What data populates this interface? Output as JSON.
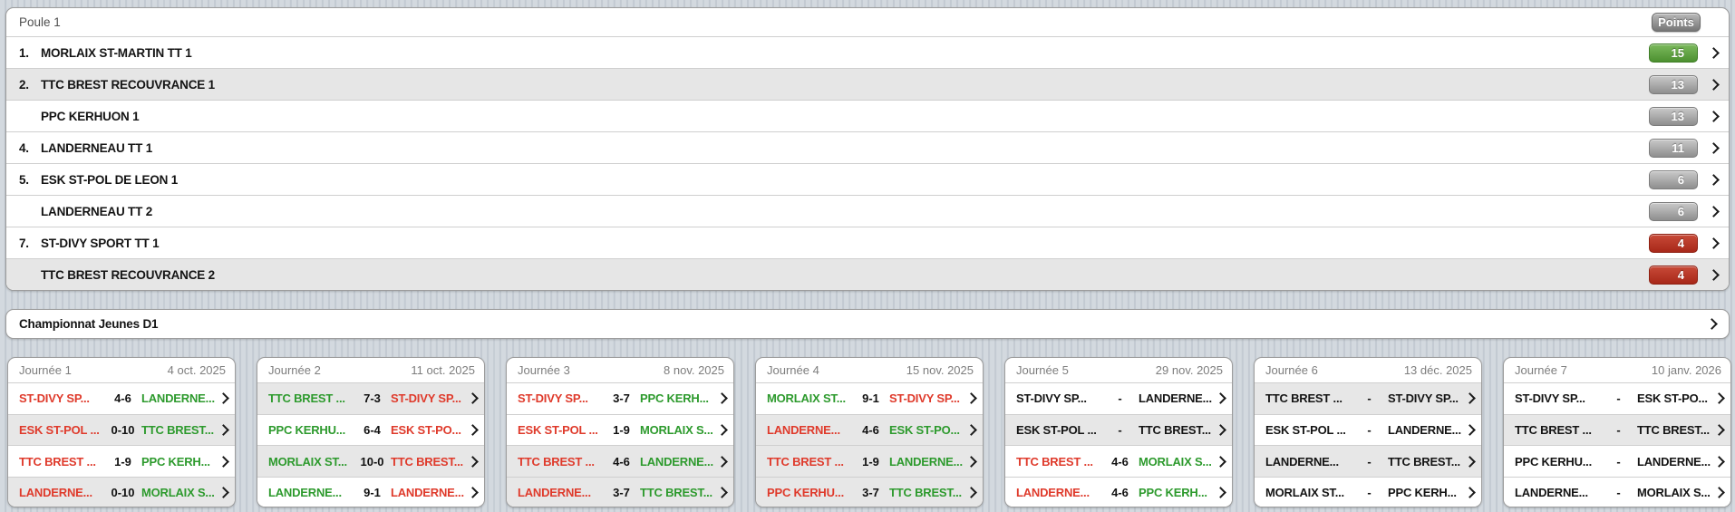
{
  "colors": {
    "win_text": "#2d9a2d",
    "loss_text": "#df3a2b",
    "badge_green_border": "#3f7d27",
    "badge_gray_border": "#7c7c7c",
    "badge_red_border": "#8d2012"
  },
  "pool": {
    "title": "Poule 1",
    "points_label": "Points",
    "teams": [
      {
        "rank": "1.",
        "name": "MORLAIX ST-MARTIN TT 1",
        "points": "15",
        "badge": "green",
        "highlighted": false
      },
      {
        "rank": "2.",
        "name": "TTC BREST RECOUVRANCE 1",
        "points": "13",
        "badge": "gray",
        "highlighted": true
      },
      {
        "rank": "",
        "name": "PPC KERHUON 1",
        "points": "13",
        "badge": "gray",
        "highlighted": false
      },
      {
        "rank": "4.",
        "name": "LANDERNEAU TT 1",
        "points": "11",
        "badge": "gray",
        "highlighted": false
      },
      {
        "rank": "5.",
        "name": "ESK ST-POL DE LEON 1",
        "points": "6",
        "badge": "gray",
        "highlighted": false
      },
      {
        "rank": "",
        "name": "LANDERNEAU TT 2",
        "points": "6",
        "badge": "gray",
        "highlighted": false
      },
      {
        "rank": "7.",
        "name": "ST-DIVY SPORT TT 1",
        "points": "4",
        "badge": "red",
        "highlighted": false
      },
      {
        "rank": "",
        "name": "TTC BREST RECOUVRANCE 2",
        "points": "4",
        "badge": "red",
        "highlighted": true
      }
    ]
  },
  "section_link": {
    "title": "Championnat Jeunes D1"
  },
  "rounds": [
    {
      "label": "Journée 1",
      "date": "4 oct. 2025",
      "matches": [
        {
          "home": "ST-DIVY SP...",
          "score": "4-6",
          "away": "LANDERNE...",
          "home_res": "loss",
          "away_res": "win",
          "highlighted": false
        },
        {
          "home": "ESK ST-POL ...",
          "score": "0-10",
          "away": "TTC BREST...",
          "home_res": "loss",
          "away_res": "win",
          "highlighted": true
        },
        {
          "home": "TTC BREST ...",
          "score": "1-9",
          "away": "PPC KERH...",
          "home_res": "loss",
          "away_res": "win",
          "highlighted": false
        },
        {
          "home": "LANDERNE...",
          "score": "0-10",
          "away": "MORLAIX S...",
          "home_res": "loss",
          "away_res": "win",
          "highlighted": true
        }
      ]
    },
    {
      "label": "Journée 2",
      "date": "11 oct. 2025",
      "matches": [
        {
          "home": "TTC BREST ...",
          "score": "7-3",
          "away": "ST-DIVY SP...",
          "home_res": "win",
          "away_res": "loss",
          "highlighted": true
        },
        {
          "home": "PPC KERHU...",
          "score": "6-4",
          "away": "ESK ST-PO...",
          "home_res": "win",
          "away_res": "loss",
          "highlighted": false
        },
        {
          "home": "MORLAIX ST...",
          "score": "10-0",
          "away": "TTC BREST...",
          "home_res": "win",
          "away_res": "loss",
          "highlighted": true
        },
        {
          "home": "LANDERNE...",
          "score": "9-1",
          "away": "LANDERNE...",
          "home_res": "win",
          "away_res": "loss",
          "highlighted": false
        }
      ]
    },
    {
      "label": "Journée 3",
      "date": "8 nov. 2025",
      "matches": [
        {
          "home": "ST-DIVY SP...",
          "score": "3-7",
          "away": "PPC KERH...",
          "home_res": "loss",
          "away_res": "win",
          "highlighted": false
        },
        {
          "home": "ESK ST-POL ...",
          "score": "1-9",
          "away": "MORLAIX S...",
          "home_res": "loss",
          "away_res": "win",
          "highlighted": false
        },
        {
          "home": "TTC BREST ...",
          "score": "4-6",
          "away": "LANDERNE...",
          "home_res": "loss",
          "away_res": "win",
          "highlighted": true
        },
        {
          "home": "LANDERNE...",
          "score": "3-7",
          "away": "TTC BREST...",
          "home_res": "loss",
          "away_res": "win",
          "highlighted": true
        }
      ]
    },
    {
      "label": "Journée 4",
      "date": "15 nov. 2025",
      "matches": [
        {
          "home": "MORLAIX ST...",
          "score": "9-1",
          "away": "ST-DIVY SP...",
          "home_res": "win",
          "away_res": "loss",
          "highlighted": false
        },
        {
          "home": "LANDERNE...",
          "score": "4-6",
          "away": "ESK ST-PO...",
          "home_res": "loss",
          "away_res": "win",
          "highlighted": true
        },
        {
          "home": "TTC BREST ...",
          "score": "1-9",
          "away": "LANDERNE...",
          "home_res": "loss",
          "away_res": "win",
          "highlighted": true
        },
        {
          "home": "PPC KERHU...",
          "score": "3-7",
          "away": "TTC BREST...",
          "home_res": "loss",
          "away_res": "win",
          "highlighted": true
        }
      ]
    },
    {
      "label": "Journée 5",
      "date": "29 nov. 2025",
      "matches": [
        {
          "home": "ST-DIVY SP...",
          "score": "-",
          "away": "LANDERNE...",
          "home_res": "none",
          "away_res": "none",
          "highlighted": false
        },
        {
          "home": "ESK ST-POL ...",
          "score": "-",
          "away": "TTC BREST...",
          "home_res": "none",
          "away_res": "none",
          "highlighted": true
        },
        {
          "home": "TTC BREST ...",
          "score": "4-6",
          "away": "MORLAIX S...",
          "home_res": "loss",
          "away_res": "win",
          "highlighted": false
        },
        {
          "home": "LANDERNE...",
          "score": "4-6",
          "away": "PPC KERH...",
          "home_res": "loss",
          "away_res": "win",
          "highlighted": false
        }
      ]
    },
    {
      "label": "Journée 6",
      "date": "13 déc. 2025",
      "matches": [
        {
          "home": "TTC BREST ...",
          "score": "-",
          "away": "ST-DIVY SP...",
          "home_res": "none",
          "away_res": "none",
          "highlighted": true
        },
        {
          "home": "ESK ST-POL ...",
          "score": "-",
          "away": "LANDERNE...",
          "home_res": "none",
          "away_res": "none",
          "highlighted": false
        },
        {
          "home": "LANDERNE...",
          "score": "-",
          "away": "TTC BREST...",
          "home_res": "none",
          "away_res": "none",
          "highlighted": true
        },
        {
          "home": "MORLAIX ST...",
          "score": "-",
          "away": "PPC KERH...",
          "home_res": "none",
          "away_res": "none",
          "highlighted": false
        }
      ]
    },
    {
      "label": "Journée 7",
      "date": "10 janv. 2026",
      "matches": [
        {
          "home": "ST-DIVY SP...",
          "score": "-",
          "away": "ESK ST-PO...",
          "home_res": "none",
          "away_res": "none",
          "highlighted": false
        },
        {
          "home": "TTC BREST ...",
          "score": "-",
          "away": "TTC BREST...",
          "home_res": "none",
          "away_res": "none",
          "highlighted": true
        },
        {
          "home": "PPC KERHU...",
          "score": "-",
          "away": "LANDERNE...",
          "home_res": "none",
          "away_res": "none",
          "highlighted": false
        },
        {
          "home": "LANDERNE...",
          "score": "-",
          "away": "MORLAIX S...",
          "home_res": "none",
          "away_res": "none",
          "highlighted": false
        }
      ]
    }
  ]
}
